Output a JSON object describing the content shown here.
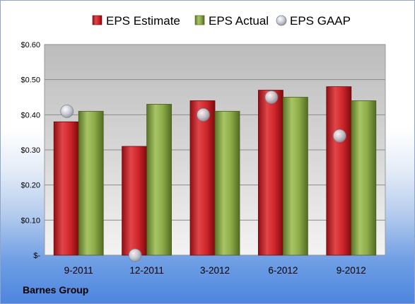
{
  "chart_data": {
    "type": "bar",
    "categories": [
      "9-2011",
      "12-2011",
      "3-2012",
      "6-2012",
      "9-2012"
    ],
    "series": [
      {
        "name": "EPS Estimate",
        "kind": "bar",
        "color": "#d0262b",
        "values": [
          0.38,
          0.31,
          0.44,
          0.47,
          0.48
        ]
      },
      {
        "name": "EPS Actual",
        "kind": "bar",
        "color": "#8cab48",
        "values": [
          0.41,
          0.43,
          0.41,
          0.45,
          0.44
        ]
      },
      {
        "name": "EPS GAAP",
        "kind": "marker",
        "color": "#c8cdd6",
        "values": [
          0.41,
          0.0,
          0.4,
          0.45,
          0.34
        ]
      }
    ],
    "ylim": [
      0,
      0.6
    ],
    "yticks": [
      0,
      0.1,
      0.2,
      0.3,
      0.4,
      0.5,
      0.6
    ],
    "ytick_labels": [
      "$-",
      "$0.10",
      "$0.20",
      "$0.30",
      "$0.40",
      "$0.50",
      "$0.60"
    ],
    "grid": true,
    "legend": "top"
  },
  "footer": {
    "company": "Barnes Group"
  }
}
